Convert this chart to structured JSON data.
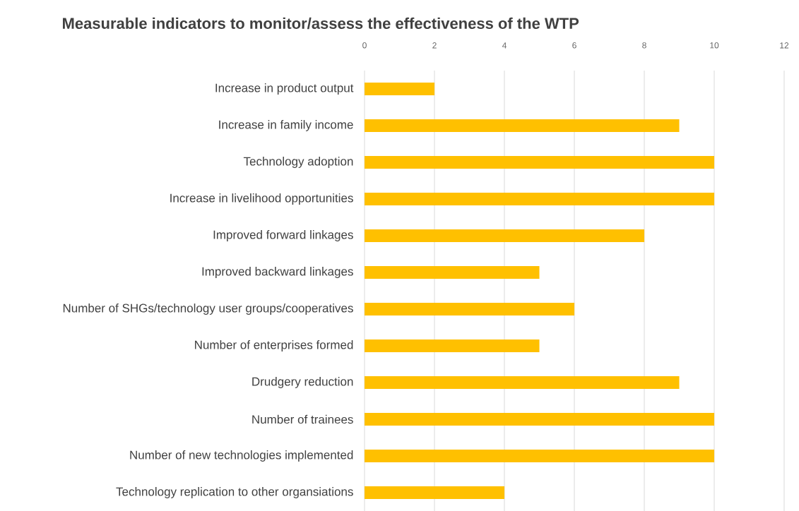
{
  "chart_data": {
    "type": "bar",
    "orientation": "horizontal",
    "title": "Measurable indicators to monitor/assess the effectiveness of the WTP",
    "categories": [
      "Increase in product output",
      "Increase in family income",
      "Technology adoption",
      "Increase in livelihood opportunities",
      "Improved forward linkages",
      "Improved backward linkages",
      "Number of SHGs/technology user groups/cooperatives",
      "Number of enterprises formed",
      "Drudgery reduction",
      "Number of trainees",
      "Number of new technologies implemented",
      "Technology replication to other organsiations"
    ],
    "values": [
      2,
      9,
      10,
      10,
      8,
      5,
      6,
      5,
      9,
      10,
      10,
      4
    ],
    "color": "#ffc000",
    "xlim": [
      0,
      12
    ],
    "xticks": [
      0,
      2,
      4,
      6,
      8,
      10,
      12
    ],
    "grid": "x"
  }
}
